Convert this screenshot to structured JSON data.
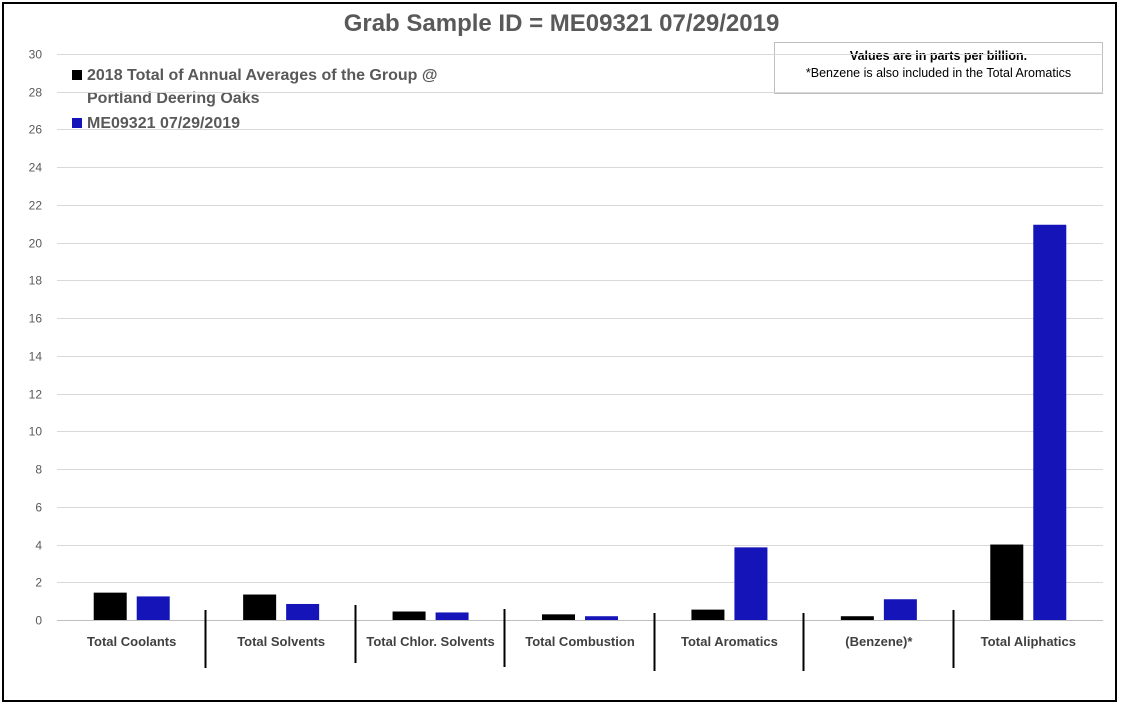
{
  "chart_data": {
    "type": "bar",
    "title": "Grab Sample ID = ME09321 07/29/2019",
    "xlabel": "",
    "ylabel": "",
    "ylim": [
      0,
      30
    ],
    "yticks": [
      0,
      2,
      4,
      6,
      8,
      10,
      12,
      14,
      16,
      18,
      20,
      22,
      24,
      26,
      28,
      30
    ],
    "grid": true,
    "legend_position": "top-left",
    "categories": [
      "Total Coolants",
      "Total Solvents",
      "Total Chlor. Solvents",
      "Total Combustion",
      "Total Aromatics",
      "(Benzene)*",
      "Total Aliphatics"
    ],
    "series": [
      {
        "name": "2018 Total of Annual Averages of the Group @ Portland Deering Oaks",
        "color": "#000000",
        "values": [
          1.45,
          1.35,
          0.45,
          0.3,
          0.55,
          0.2,
          4.0
        ]
      },
      {
        "name": "ME09321 07/29/2019",
        "color": "#1414b8",
        "values": [
          1.25,
          0.85,
          0.4,
          0.2,
          3.85,
          1.1,
          20.95
        ]
      }
    ],
    "annotations": [
      "Values are in parts per billion.",
      "*Benzene is also included in the Total Aromatics"
    ]
  },
  "legend": {
    "line1": "2018 Total of Annual Averages of the Group @",
    "line2": "Portland Deering Oaks"
  }
}
